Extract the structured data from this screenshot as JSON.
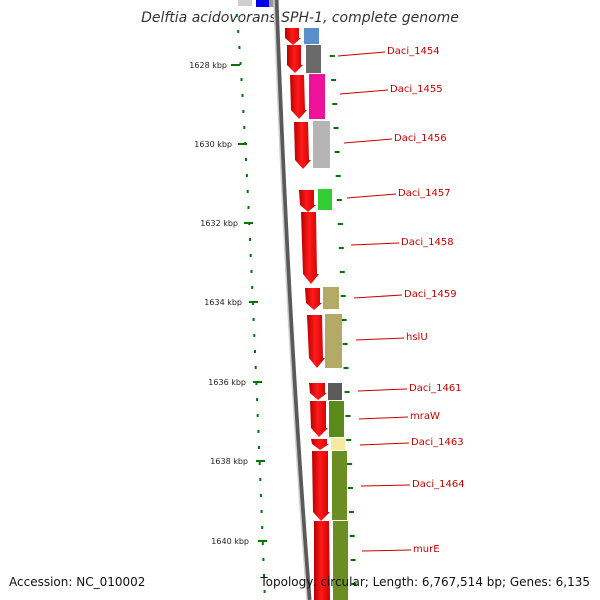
{
  "map": {
    "title": "Delftia acidovorans SPH-1, complete genome",
    "accession": "Accession: NC_010002",
    "topology": "Topology: circular; Length: 6,767,514 bp; Genes: 6,135",
    "ticks": [
      "1628 kbp",
      "1630 kbp",
      "1632 kbp",
      "1634 kbp",
      "1636 kbp",
      "1638 kbp",
      "1640 kbp"
    ],
    "genes": [
      {
        "label": "Daci_1454",
        "color": "#6a6a6a"
      },
      {
        "label": "Daci_1455",
        "color": "#ee1199"
      },
      {
        "label": "Daci_1456",
        "color": "#b5b5b5"
      },
      {
        "label": "Daci_1457",
        "color": "#33cc33"
      },
      {
        "label": "Daci_1458",
        "color": ""
      },
      {
        "label": "Daci_1459",
        "color": "#b3aa66"
      },
      {
        "label": "hslU",
        "color": "#b3aa66"
      },
      {
        "label": "Daci_1461",
        "color": "#5a5a5a"
      },
      {
        "label": "mraW",
        "color": "#5a8a1a"
      },
      {
        "label": "Daci_1463",
        "color": "#f5eaa0"
      },
      {
        "label": "Daci_1464",
        "color": "#6b8e23"
      },
      {
        "label": "murE",
        "color": "#6b8e23"
      }
    ],
    "colors": {
      "strand_arrows": "#ff0000",
      "tick_marks": "#007700",
      "backbone": "#8a8a8a",
      "label_text": "#cc0000",
      "partial_top_gene": "#5b8fcc",
      "partial_top_blue": "#0000ee"
    }
  }
}
